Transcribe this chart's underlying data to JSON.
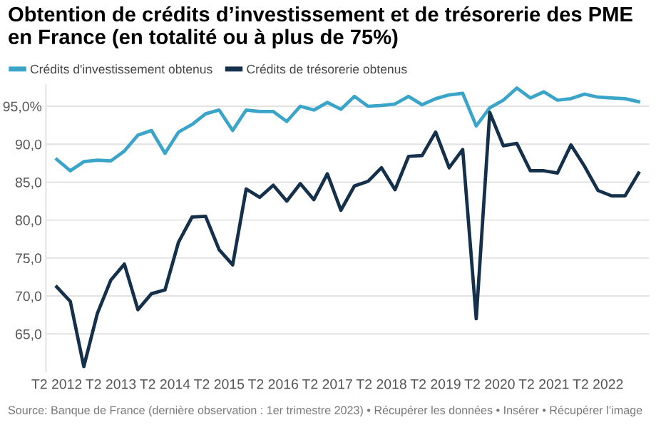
{
  "chart_data": {
    "type": "line",
    "title": "Obtention de crédits d’investissement et de trésorerie des PME en France (en totalité ou à plus de 75%)",
    "categories": [
      "T2 2012",
      null,
      null,
      null,
      "T2 2013",
      null,
      null,
      null,
      "T2 2014",
      null,
      null,
      null,
      "T2 2015",
      null,
      null,
      null,
      "T2 2016",
      null,
      null,
      null,
      "T2 2017",
      null,
      null,
      null,
      "T2 2018",
      null,
      null,
      null,
      "T2 2019",
      null,
      null,
      null,
      "T2 2020",
      null,
      null,
      null,
      "T2 2021",
      null,
      null,
      null,
      "T2 2022",
      null,
      null,
      null
    ],
    "series": [
      {
        "name": "Crédits d'investissement obtenus",
        "color": "#3aa5c9",
        "values": [
          88.0,
          86.5,
          87.7,
          87.9,
          87.8,
          89.1,
          91.2,
          91.8,
          88.8,
          91.6,
          92.6,
          94.0,
          94.5,
          91.8,
          94.5,
          94.3,
          94.3,
          93.0,
          95.0,
          94.5,
          95.5,
          94.6,
          96.3,
          95.0,
          95.1,
          95.3,
          96.3,
          95.2,
          96.0,
          96.5,
          96.7,
          92.4,
          94.8,
          95.8,
          97.4,
          96.1,
          96.9,
          95.8,
          96.0,
          96.6,
          96.2,
          96.1,
          96.0,
          95.6
        ]
      },
      {
        "name": "Crédits de trésorerie obtenus",
        "color": "#15304a",
        "values": [
          71.2,
          69.3,
          60.7,
          67.7,
          72.1,
          74.2,
          68.2,
          70.3,
          70.8,
          77.1,
          80.4,
          80.5,
          76.1,
          74.1,
          84.1,
          83.0,
          84.6,
          82.5,
          84.8,
          82.7,
          86.1,
          81.3,
          84.5,
          85.1,
          86.9,
          84.0,
          88.4,
          88.5,
          91.6,
          86.9,
          89.3,
          67.0,
          94.2,
          89.8,
          90.1,
          86.5,
          86.5,
          86.2,
          89.9,
          87.1,
          83.9,
          83.2,
          83.2,
          86.2
        ]
      }
    ],
    "ylim": [
      60,
      97.8
    ],
    "yticks": [
      {
        "value": 65,
        "label": "65,0"
      },
      {
        "value": 70,
        "label": "70,0"
      },
      {
        "value": 75,
        "label": "75,0"
      },
      {
        "value": 80,
        "label": "80,0"
      },
      {
        "value": 85,
        "label": "85,0"
      },
      {
        "value": 90,
        "label": "90,0"
      },
      {
        "value": 95,
        "label": "95,0%"
      }
    ],
    "grid": "y",
    "legend": "top left",
    "marker": "none",
    "line_style": "solid",
    "annotations": [
      "Source: Banque de France (dernière observation : 1er trimestre 2023) • Récupérer les données • Insérer • Récupérer l’image"
    ]
  }
}
